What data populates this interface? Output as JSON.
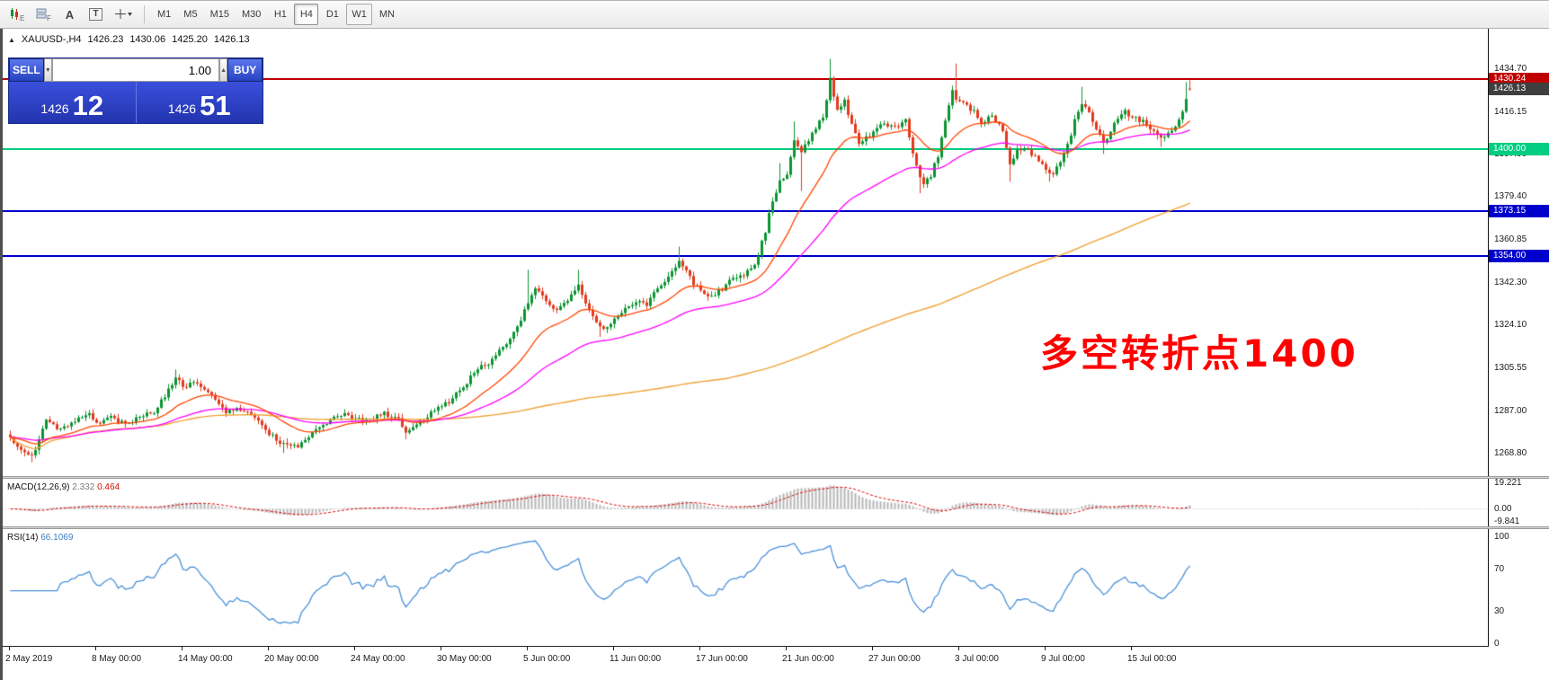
{
  "window": {
    "title": "XAUUSD-,H4"
  },
  "toolbar": {
    "icons": [
      {
        "name": "chart-candles-icon",
        "tag": "E"
      },
      {
        "name": "tile-windows-icon",
        "tag": "F"
      },
      {
        "name": "text-annotation-icon",
        "glyph": "A"
      },
      {
        "name": "text-label-icon",
        "glyph": "T"
      },
      {
        "name": "crosshair-tool-icon"
      }
    ],
    "timeframes": [
      {
        "label": "M1"
      },
      {
        "label": "M5"
      },
      {
        "label": "M15"
      },
      {
        "label": "M30"
      },
      {
        "label": "H1"
      },
      {
        "label": "H4",
        "active": true
      },
      {
        "label": "D1"
      },
      {
        "label": "W1",
        "boxed": true
      },
      {
        "label": "MN"
      }
    ]
  },
  "symbol_header": {
    "symbol": "XAUUSD-,H4",
    "open": "1426.23",
    "high": "1430.06",
    "low": "1425.20",
    "close": "1426.13"
  },
  "trade_panel": {
    "sell_label": "SELL",
    "buy_label": "BUY",
    "volume": "1.00",
    "spin_down": "▼",
    "spin_up": "▲",
    "bid": {
      "small": "1426",
      "big": "12"
    },
    "ask": {
      "small": "1426",
      "big": "51"
    }
  },
  "annotation": {
    "text": "多空转折点1400",
    "color": "#ff0000"
  },
  "price_axis": {
    "ticks": [
      "1434.70",
      "1416.15",
      "1397.90",
      "1379.40",
      "1360.85",
      "1342.30",
      "1324.10",
      "1305.55",
      "1287.00",
      "1268.80"
    ],
    "badges": [
      {
        "label": "1430.24",
        "price": 1430.24,
        "bg": "#c00000",
        "fg": "#ffffff"
      },
      {
        "label": "1426.13",
        "price": 1426.13,
        "bg": "#3f3f3f",
        "fg": "#ffffff"
      },
      {
        "label": "1400.00",
        "price": 1400.0,
        "bg": "#00cd80",
        "fg": "#ffffff"
      },
      {
        "label": "1373.15",
        "price": 1373.15,
        "bg": "#0000cc",
        "fg": "#ffffff"
      },
      {
        "label": "1354.00",
        "price": 1354.0,
        "bg": "#0000cc",
        "fg": "#ffffff"
      }
    ]
  },
  "macd_panel": {
    "name": "MACD(12,26,9)",
    "value_main": "2.332",
    "value_signal": "0.464",
    "axis": [
      {
        "v": 19.221,
        "label": "19.221"
      },
      {
        "v": 0,
        "label": "0.00"
      },
      {
        "v": -9.841,
        "label": "-9.841"
      }
    ]
  },
  "rsi_panel": {
    "name": "RSI(14)",
    "value": "66.1069",
    "axis": [
      {
        "v": 100,
        "label": "100"
      },
      {
        "v": 70,
        "label": "70"
      },
      {
        "v": 30,
        "label": "30"
      },
      {
        "v": 0,
        "label": "0"
      }
    ]
  },
  "time_axis": [
    "2 May 2019",
    "8 May 00:00",
    "14 May 00:00",
    "20 May 00:00",
    "24 May 00:00",
    "30 May 00:00",
    "5 Jun 00:00",
    "11 Jun 00:00",
    "17 Jun 00:00",
    "21 Jun 00:00",
    "27 Jun 00:00",
    "3 Jul 00:00",
    "9 Jul 00:00",
    "15 Jul 00:00"
  ],
  "chart_data": {
    "type": "candlestick",
    "symbol": "XAUUSD-",
    "timeframe": "H4",
    "x_labels": [
      "2 May 2019",
      "8 May 00:00",
      "14 May 00:00",
      "20 May 00:00",
      "24 May 00:00",
      "30 May 00:00",
      "5 Jun 00:00",
      "11 Jun 00:00",
      "17 Jun 00:00",
      "21 Jun 00:00",
      "27 Jun 00:00",
      "3 Jul 00:00",
      "9 Jul 00:00",
      "15 Jul 00:00"
    ],
    "bars_per_label": 24,
    "n_bars": 329,
    "y_range": [
      1259,
      1452
    ],
    "colors": {
      "up": "#0b9431",
      "down": "#e23a1e",
      "ma_fast": "#ff4500",
      "ma_mid": "#ff00ff",
      "ma_slow": "#eea236",
      "macd_hist": "#b6b6b6",
      "macd_signal": "#dd0000",
      "rsi": "#4a90d9"
    },
    "overlays": [
      {
        "name": "MA fast",
        "method": "ema",
        "period": 21,
        "color_key": "ma_fast"
      },
      {
        "name": "MA mid",
        "method": "ema",
        "period": 55,
        "color_key": "ma_mid"
      },
      {
        "name": "MA slow",
        "method": "sma",
        "period": 200,
        "color_key": "ma_slow"
      }
    ],
    "price_waypoints": [
      [
        0,
        1276
      ],
      [
        3,
        1270
      ],
      [
        6,
        1267
      ],
      [
        10,
        1283
      ],
      [
        14,
        1279
      ],
      [
        18,
        1283
      ],
      [
        22,
        1286
      ],
      [
        24,
        1281
      ],
      [
        28,
        1284
      ],
      [
        32,
        1282
      ],
      [
        36,
        1284
      ],
      [
        40,
        1287
      ],
      [
        44,
        1296
      ],
      [
        46,
        1302
      ],
      [
        48,
        1297
      ],
      [
        52,
        1300
      ],
      [
        56,
        1294
      ],
      [
        60,
        1286
      ],
      [
        64,
        1288
      ],
      [
        68,
        1284
      ],
      [
        72,
        1277
      ],
      [
        76,
        1273
      ],
      [
        80,
        1271
      ],
      [
        84,
        1277
      ],
      [
        88,
        1282
      ],
      [
        92,
        1286
      ],
      [
        96,
        1284
      ],
      [
        100,
        1283
      ],
      [
        104,
        1286
      ],
      [
        108,
        1283
      ],
      [
        110,
        1278
      ],
      [
        114,
        1283
      ],
      [
        118,
        1287
      ],
      [
        122,
        1291
      ],
      [
        126,
        1298
      ],
      [
        130,
        1305
      ],
      [
        134,
        1309
      ],
      [
        138,
        1316
      ],
      [
        142,
        1326
      ],
      [
        144,
        1334
      ],
      [
        146,
        1340
      ],
      [
        148,
        1336
      ],
      [
        150,
        1332
      ],
      [
        152,
        1330
      ],
      [
        154,
        1334
      ],
      [
        156,
        1337
      ],
      [
        158,
        1342
      ],
      [
        160,
        1334
      ],
      [
        162,
        1328
      ],
      [
        165,
        1323
      ],
      [
        168,
        1326
      ],
      [
        171,
        1331
      ],
      [
        174,
        1335
      ],
      [
        177,
        1333
      ],
      [
        180,
        1340
      ],
      [
        183,
        1345
      ],
      [
        186,
        1352
      ],
      [
        188,
        1348
      ],
      [
        190,
        1342
      ],
      [
        192,
        1339
      ],
      [
        195,
        1336
      ],
      [
        198,
        1340
      ],
      [
        201,
        1344
      ],
      [
        204,
        1346
      ],
      [
        207,
        1350
      ],
      [
        210,
        1365
      ],
      [
        212,
        1378
      ],
      [
        214,
        1386
      ],
      [
        216,
        1390
      ],
      [
        218,
        1403
      ],
      [
        220,
        1398
      ],
      [
        222,
        1404
      ],
      [
        224,
        1409
      ],
      [
        226,
        1414
      ],
      [
        228,
        1430
      ],
      [
        230,
        1417
      ],
      [
        232,
        1421
      ],
      [
        234,
        1410
      ],
      [
        236,
        1402
      ],
      [
        240,
        1407
      ],
      [
        243,
        1411
      ],
      [
        246,
        1410
      ],
      [
        249,
        1412
      ],
      [
        252,
        1392
      ],
      [
        254,
        1386
      ],
      [
        256,
        1389
      ],
      [
        258,
        1397
      ],
      [
        260,
        1412
      ],
      [
        262,
        1425
      ],
      [
        264,
        1420
      ],
      [
        266,
        1419
      ],
      [
        268,
        1416
      ],
      [
        270,
        1412
      ],
      [
        273,
        1414
      ],
      [
        276,
        1408
      ],
      [
        278,
        1394
      ],
      [
        280,
        1400
      ],
      [
        282,
        1400
      ],
      [
        285,
        1397
      ],
      [
        288,
        1392
      ],
      [
        290,
        1389
      ],
      [
        292,
        1395
      ],
      [
        294,
        1402
      ],
      [
        296,
        1412
      ],
      [
        298,
        1420
      ],
      [
        300,
        1417
      ],
      [
        302,
        1408
      ],
      [
        304,
        1403
      ],
      [
        306,
        1408
      ],
      [
        308,
        1414
      ],
      [
        310,
        1416
      ],
      [
        312,
        1414
      ],
      [
        315,
        1412
      ],
      [
        318,
        1408
      ],
      [
        320,
        1404
      ],
      [
        322,
        1407
      ],
      [
        324,
        1410
      ],
      [
        326,
        1417
      ],
      [
        328,
        1426
      ]
    ],
    "wick_overrides": [
      {
        "i": 6,
        "low": 1265
      },
      {
        "i": 46,
        "high": 1305
      },
      {
        "i": 76,
        "low": 1269
      },
      {
        "i": 110,
        "low": 1275
      },
      {
        "i": 144,
        "high": 1348
      },
      {
        "i": 158,
        "high": 1348
      },
      {
        "i": 164,
        "low": 1319
      },
      {
        "i": 186,
        "high": 1358
      },
      {
        "i": 214,
        "high": 1394
      },
      {
        "i": 218,
        "high": 1412
      },
      {
        "i": 220,
        "low": 1382
      },
      {
        "i": 228,
        "high": 1439
      },
      {
        "i": 253,
        "low": 1381
      },
      {
        "i": 263,
        "high": 1437
      },
      {
        "i": 278,
        "low": 1386
      },
      {
        "i": 289,
        "low": 1386
      },
      {
        "i": 298,
        "high": 1427
      },
      {
        "i": 304,
        "low": 1398
      },
      {
        "i": 320,
        "low": 1401
      },
      {
        "i": 327,
        "high": 1429
      }
    ],
    "last_bar": {
      "open": 1426.23,
      "high": 1430.06,
      "low": 1425.2,
      "close": 1426.13
    },
    "horizontal_lines": [
      {
        "price": 1430.24,
        "color": "#c00000"
      },
      {
        "price": 1400.0,
        "color": "#00cd80"
      },
      {
        "price": 1373.15,
        "color": "#0000cc"
      },
      {
        "price": 1354.0,
        "color": "#0000cc"
      }
    ],
    "indicators": [
      {
        "type": "macd",
        "fast": 12,
        "slow": 26,
        "signal": 9,
        "current_macd": 2.332,
        "current_signal": 0.464,
        "scale": [
          -9.841,
          19.221
        ]
      },
      {
        "type": "rsi",
        "period": 14,
        "current": 66.1069,
        "scale": [
          0,
          100
        ]
      }
    ]
  }
}
